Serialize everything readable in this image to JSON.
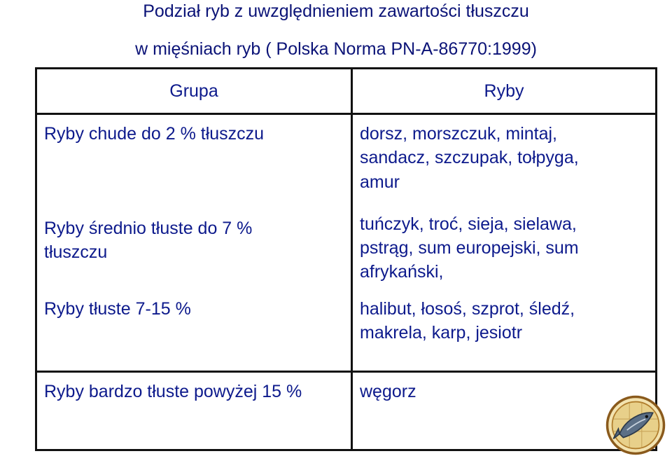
{
  "title": {
    "line1": "Podział ryb z uwzględnieniem zawartości tłuszczu",
    "line2": "w mięśniach ryb ( Polska Norma PN-A-86770:1999)"
  },
  "table": {
    "header": {
      "group": "Grupa",
      "fish": "Ryby"
    },
    "rows": [
      {
        "group": "Ryby chude do 2 % tłuszczu",
        "fish_lines": [
          "dorsz, morszczuk, mintaj,",
          "sandacz, szczupak, tołpyga,",
          "amur"
        ]
      },
      {
        "group_lines": [
          "Ryby średnio tłuste do 7 %",
          "tłuszczu"
        ],
        "fish_lines": [
          "tuńczyk, troć, sieja, sielawa,",
          "pstrąg, sum europejski, sum",
          "afrykański,"
        ]
      },
      {
        "group": "Ryby tłuste 7-15 %",
        "fish_lines": [
          "halibut, łosoś, szprot, śledź,",
          "makrela, karp, jesiotr"
        ]
      },
      {
        "group": "Ryby bardzo tłuste powyżej 15 %",
        "fish": "węgorz"
      }
    ]
  },
  "seal": {
    "icon": "fish-seal-icon"
  }
}
